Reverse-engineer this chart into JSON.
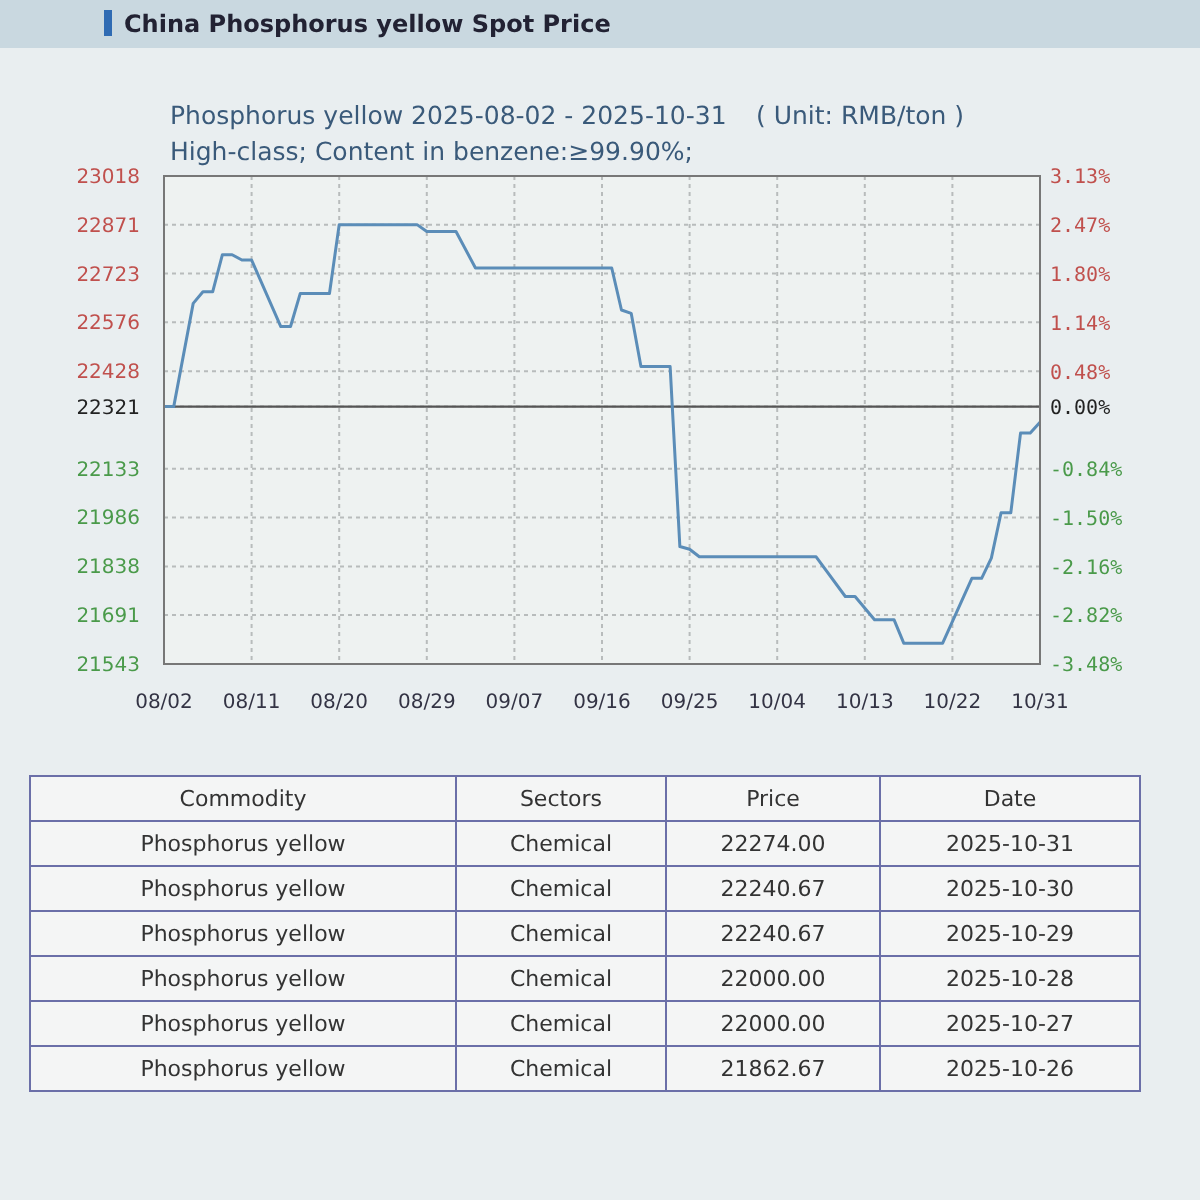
{
  "chart_data": [
    {
      "type": "line",
      "title": "Phosphorus yellow 2025-08-02 - 2025-10-31",
      "subtitle": "High-class; Content in benzene:≥99.90%;",
      "annotations": [
        "China Phosphorus yellow Spot Price",
        "( Unit: RMB/ton )"
      ],
      "x": [
        "2025-08-02",
        "2025-08-03",
        "2025-08-05",
        "2025-08-06",
        "2025-08-07",
        "2025-08-08",
        "2025-08-09",
        "2025-08-10",
        "2025-08-11",
        "2025-08-14",
        "2025-08-15",
        "2025-08-16",
        "2025-08-19",
        "2025-08-20",
        "2025-08-28",
        "2025-08-29",
        "2025-09-01",
        "2025-09-03",
        "2025-09-17",
        "2025-09-18",
        "2025-09-19",
        "2025-09-20",
        "2025-09-23",
        "2025-09-24",
        "2025-09-25",
        "2025-09-26",
        "2025-10-08",
        "2025-10-11",
        "2025-10-12",
        "2025-10-14",
        "2025-10-16",
        "2025-10-17",
        "2025-10-21",
        "2025-10-24",
        "2025-10-25",
        "2025-10-26",
        "2025-10-27",
        "2025-10-28",
        "2025-10-29",
        "2025-10-30",
        "2025-10-31"
      ],
      "series": [
        {
          "color": "#5b8db8",
          "values": [
            22321,
            22321,
            22633,
            22668,
            22668,
            22780,
            22780,
            22764,
            22764,
            22563,
            22563,
            22663,
            22663,
            22871,
            22871,
            22850,
            22850,
            22740,
            22740,
            22613,
            22603,
            22442,
            22442,
            21898,
            21890,
            21867,
            21867,
            21747,
            21747,
            21677,
            21677,
            21606,
            21606,
            21802,
            21802,
            21863,
            22000,
            22000,
            22241,
            22241,
            22274
          ]
        }
      ],
      "xlim": [
        "2025-08-02",
        "2025-10-31"
      ],
      "xticks": [
        {
          "value": "2025-08-02",
          "label": "08/02"
        },
        {
          "value": "2025-08-11",
          "label": "08/11"
        },
        {
          "value": "2025-08-20",
          "label": "08/20"
        },
        {
          "value": "2025-08-29",
          "label": "08/29"
        },
        {
          "value": "2025-09-07",
          "label": "09/07"
        },
        {
          "value": "2025-09-16",
          "label": "09/16"
        },
        {
          "value": "2025-09-25",
          "label": "09/25"
        },
        {
          "value": "2025-10-04",
          "label": "10/04"
        },
        {
          "value": "2025-10-13",
          "label": "10/13"
        },
        {
          "value": "2025-10-22",
          "label": "10/22"
        },
        {
          "value": "2025-10-31",
          "label": "10/31"
        }
      ],
      "ylim": [
        21543,
        23018
      ],
      "yticks": [
        21543,
        21691,
        21838,
        21986,
        22133,
        22321,
        22428,
        22576,
        22723,
        22871,
        23018
      ],
      "y2lim": [
        -3.48,
        3.13
      ],
      "y2ticks": [
        {
          "value": -3.48,
          "label": "-3.48%"
        },
        {
          "value": -2.82,
          "label": "-2.82%"
        },
        {
          "value": -2.16,
          "label": "-2.16%"
        },
        {
          "value": -1.5,
          "label": "-1.50%"
        },
        {
          "value": -0.84,
          "label": "-0.84%"
        },
        {
          "value": 0,
          "label": "0.00%"
        },
        {
          "value": 0.48,
          "label": "0.48%"
        },
        {
          "value": 1.14,
          "label": "1.14%"
        },
        {
          "value": 1.8,
          "label": "1.80%"
        },
        {
          "value": 2.47,
          "label": "2.47%"
        },
        {
          "value": 3.13,
          "label": "3.13%"
        }
      ],
      "ref_lines": [
        {
          "axis": "y",
          "value": 22321,
          "color": "#555555"
        }
      ],
      "grid": true,
      "line_style": "solid"
    },
    {
      "type": "other",
      "annotations": [
        "Commodity",
        "Sectors",
        "Price",
        "Date",
        "Phosphorus yellow",
        "Chemical",
        "22274.00",
        "2025-10-31",
        "Phosphorus yellow",
        "Chemical",
        "22240.67",
        "2025-10-30",
        "Phosphorus yellow",
        "Chemical",
        "22240.67",
        "2025-10-29",
        "Phosphorus yellow",
        "Chemical",
        "22000.00",
        "2025-10-28",
        "Phosphorus yellow",
        "Chemical",
        "22000.00",
        "2025-10-27",
        "Phosphorus yellow",
        "Chemical",
        "21862.67",
        "2025-10-26"
      ]
    }
  ]
}
